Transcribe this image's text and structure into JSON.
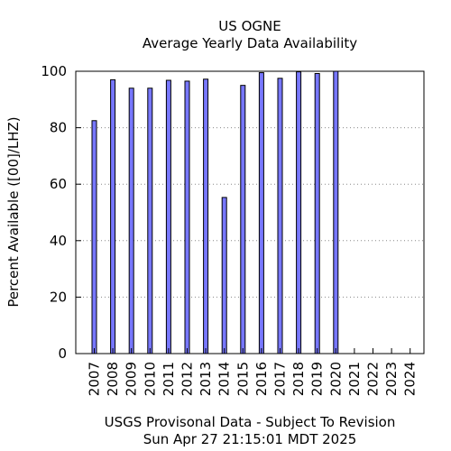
{
  "chart_data": {
    "type": "bar",
    "title": "US OGNE",
    "subtitle": "Average Yearly Data Availability",
    "ylabel": "Percent Available ([00]/LHZ)",
    "xlabel": "USGS Provisonal Data - Subject To Revision",
    "timestamp": "Sun Apr 27 21:15:01 MDT 2025",
    "categories": [
      "2007",
      "2008",
      "2009",
      "2010",
      "2011",
      "2012",
      "2013",
      "2014",
      "2015",
      "2016",
      "2017",
      "2018",
      "2019",
      "2020",
      "2021",
      "2022",
      "2023",
      "2024"
    ],
    "values": [
      82.5,
      97.0,
      94.0,
      94.0,
      96.8,
      96.5,
      97.2,
      55.3,
      95.0,
      99.5,
      97.5,
      99.8,
      99.2,
      100.0,
      null,
      null,
      null,
      null
    ],
    "ylim": [
      0,
      100
    ],
    "yticks": [
      "0",
      "20",
      "40",
      "60",
      "80",
      "100"
    ],
    "bar_color": "#7777ff",
    "grid": true
  }
}
